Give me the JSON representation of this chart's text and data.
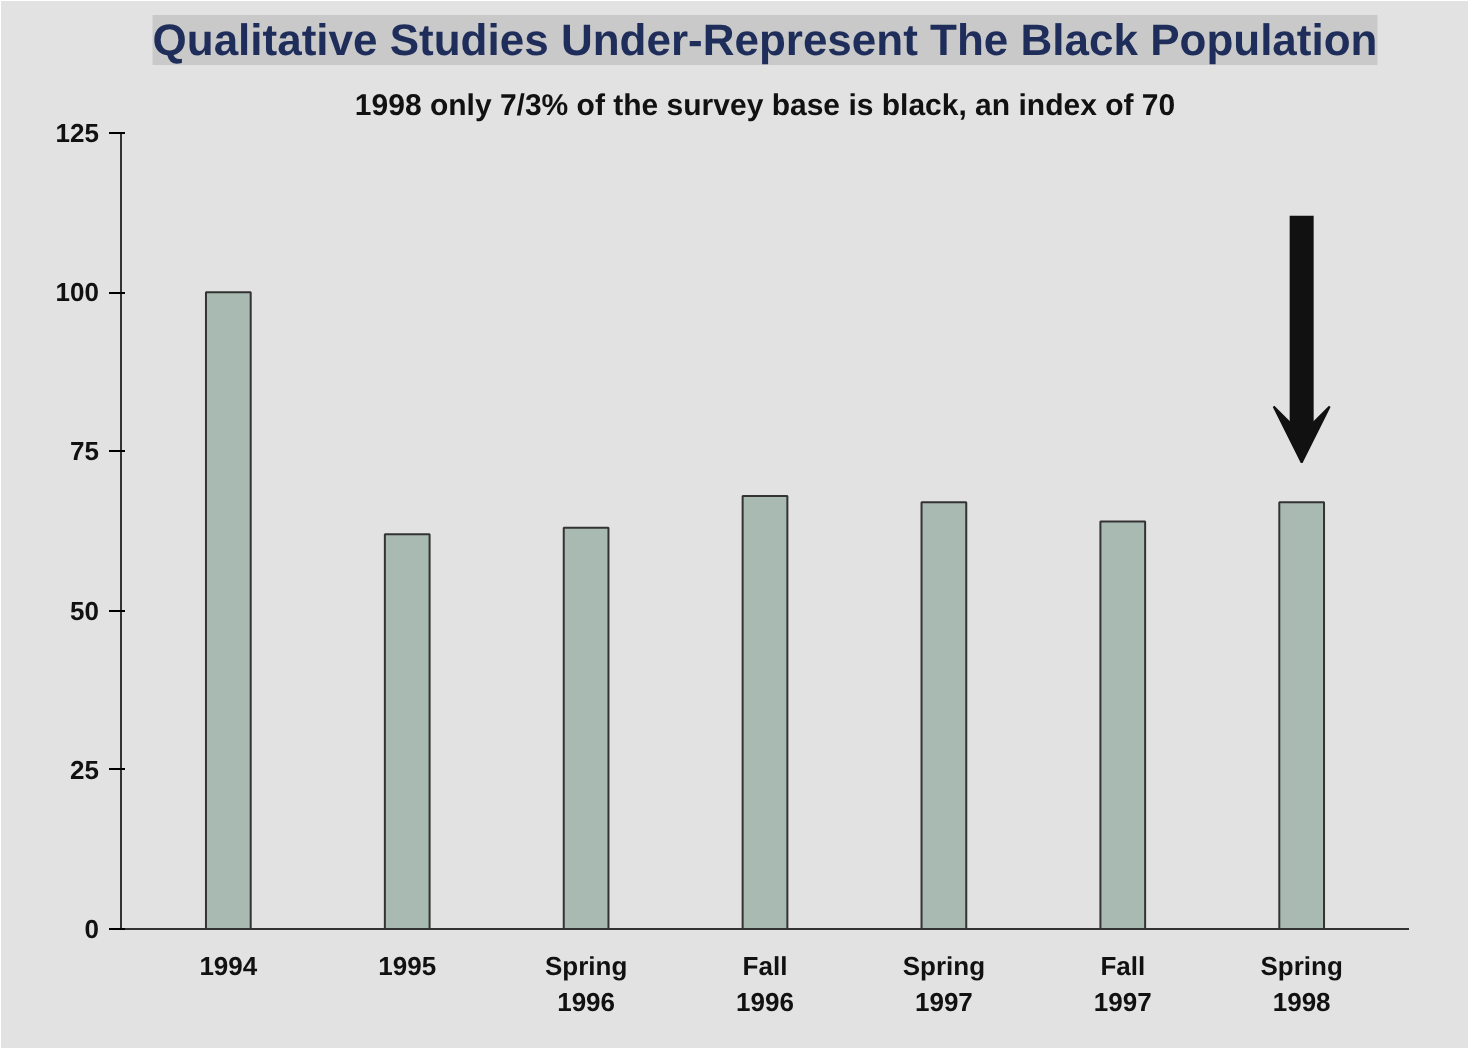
{
  "chart_data": {
    "type": "bar",
    "title": "Qualitative Studies Under-Represent The Black Population",
    "subtitle": "1998 only 7/3% of the survey base is black, an index of 70",
    "categories": [
      "1994",
      "1995",
      "Spring 1996",
      "Fall 1996",
      "Spring 1997",
      "Fall 1997",
      "Spring 1998"
    ],
    "values": [
      100,
      62,
      63,
      68,
      67,
      64,
      67
    ],
    "color": "#a9bab2",
    "ylim": [
      0,
      125
    ],
    "yticks": [
      0,
      25,
      50,
      75,
      100,
      125
    ]
  }
}
